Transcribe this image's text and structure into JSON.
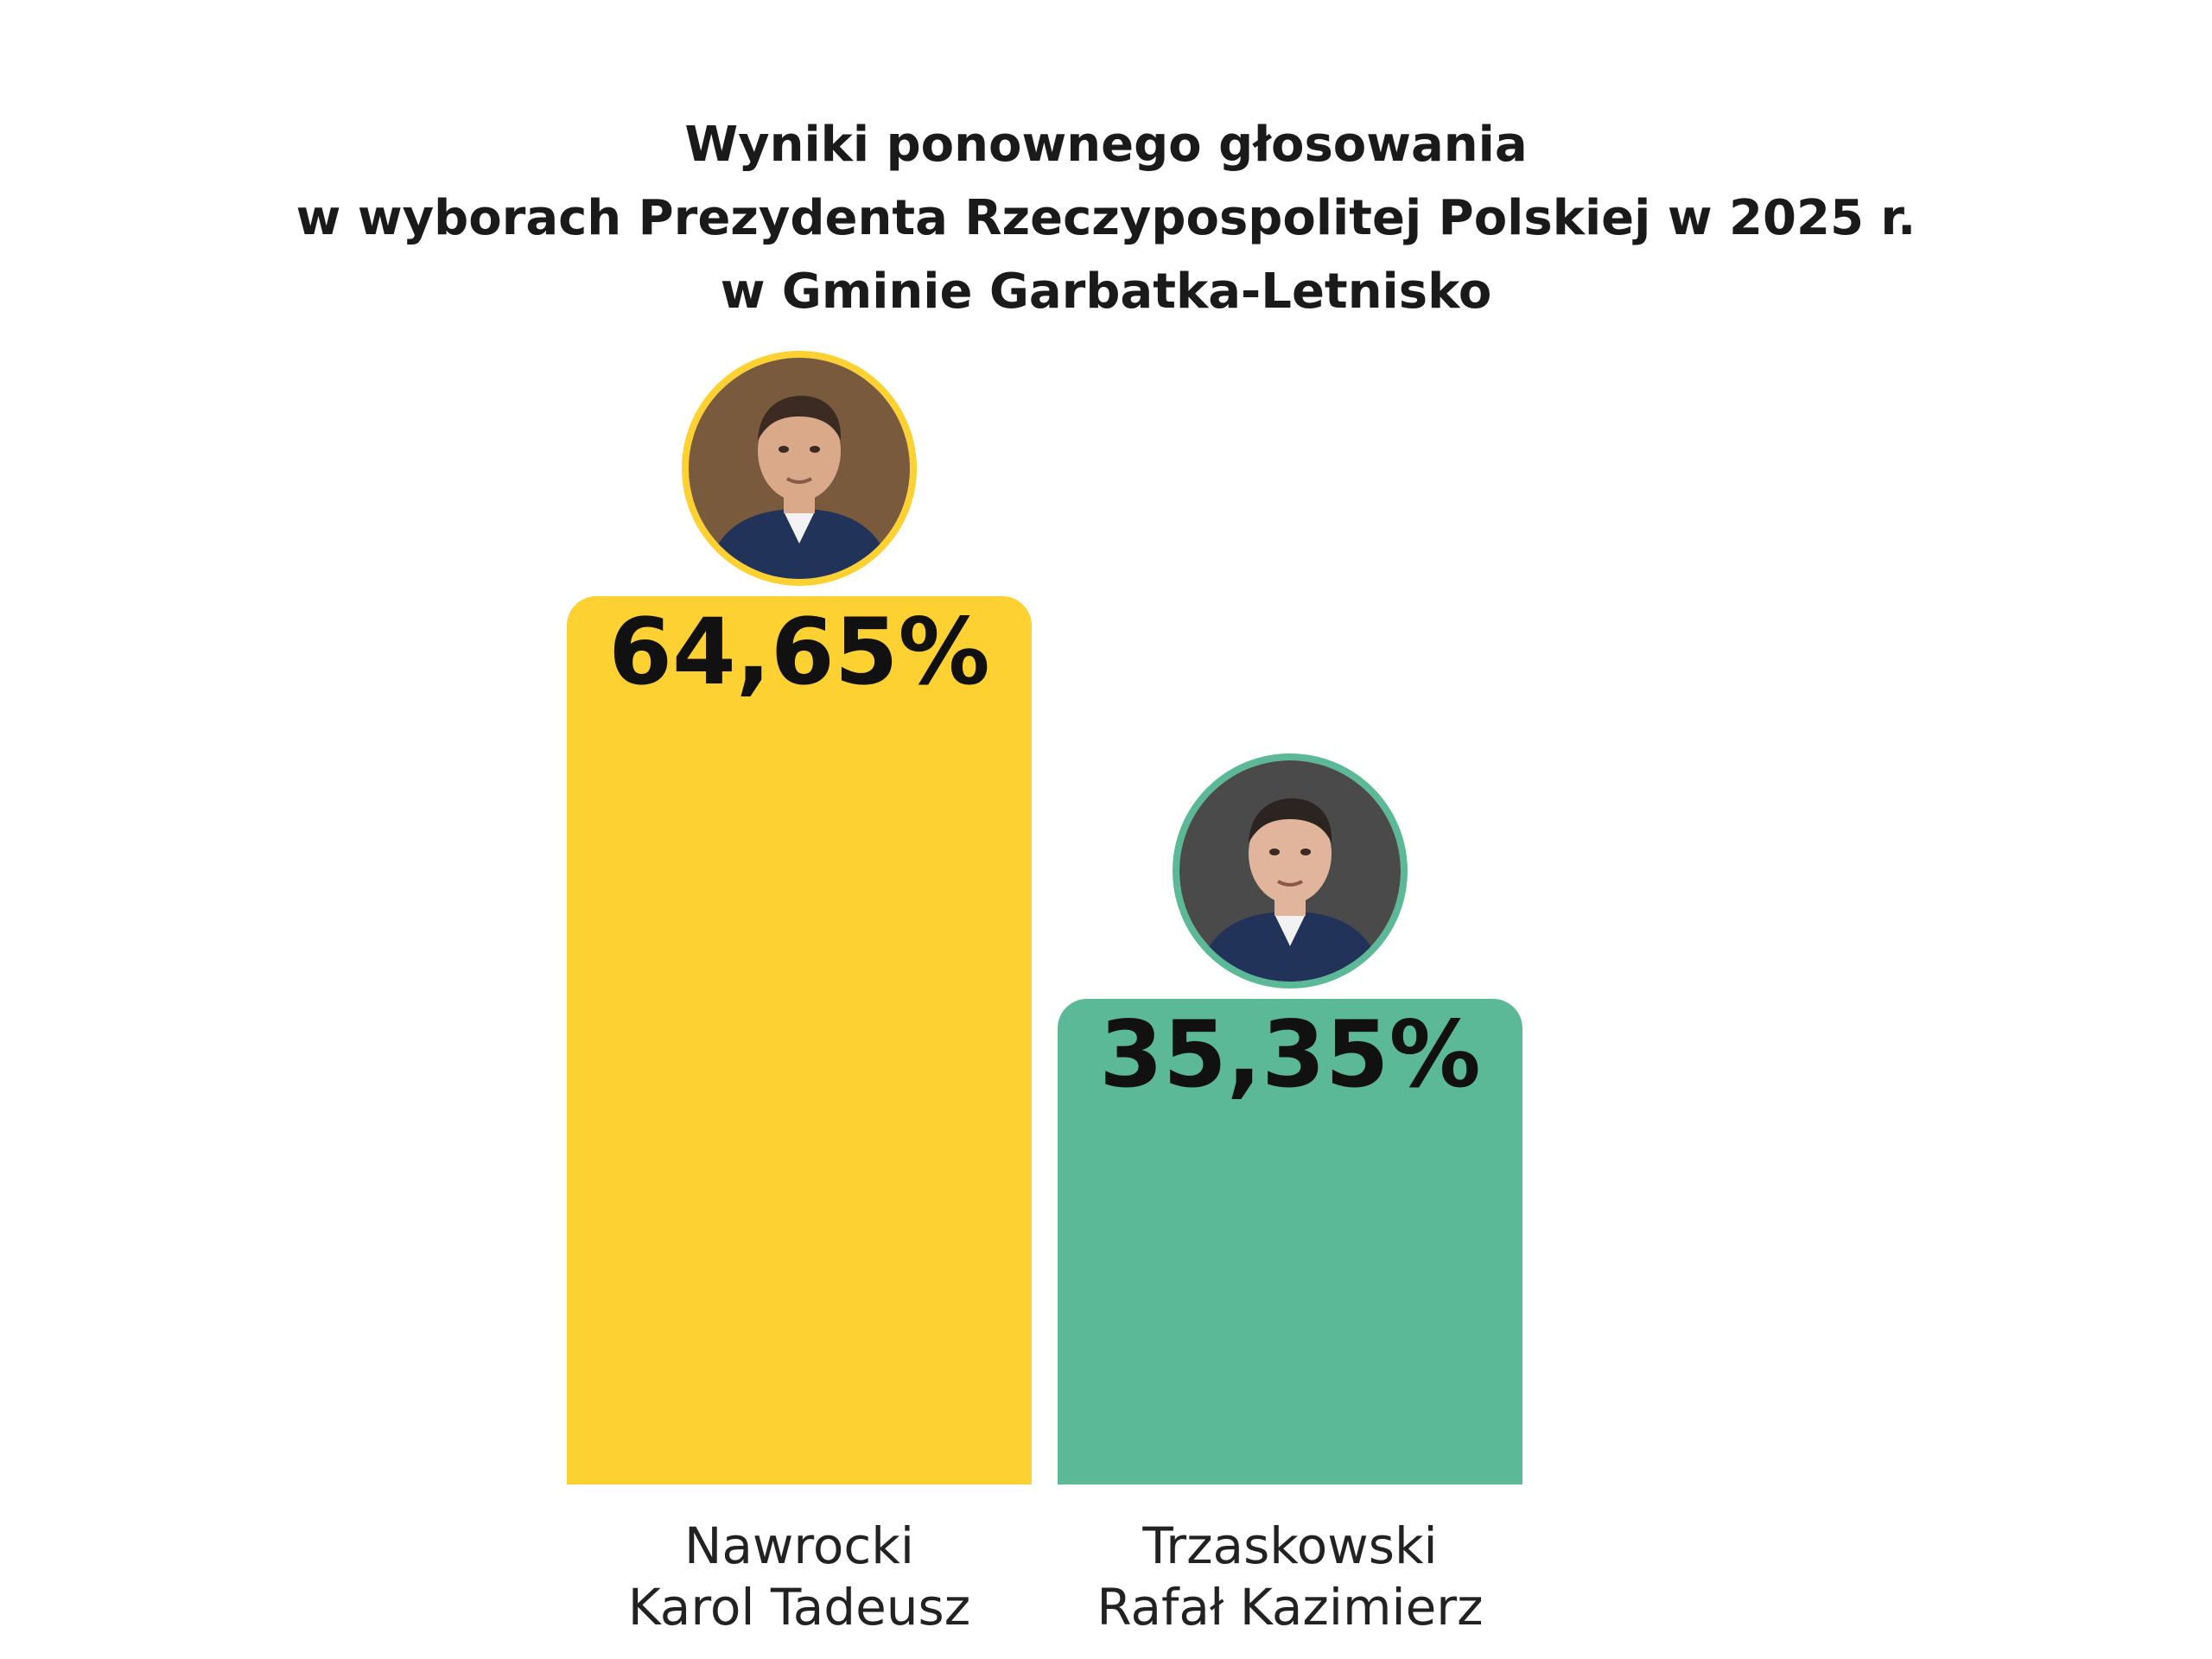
{
  "chart_data": {
    "type": "bar",
    "title_lines": [
      "Wyniki ponownego głosowania",
      "w wyborach Prezydenta Rzeczypospolitej Polskiej w 2025 r.",
      "w Gminie Garbatka-Letnisko"
    ],
    "categories": [
      {
        "line1": "Nawrocki",
        "line2": "Karol Tadeusz"
      },
      {
        "line1": "Trzaskowski",
        "line2": "Rafał Kazimierz"
      }
    ],
    "values": [
      64.65,
      35.35
    ],
    "value_labels": [
      "64,65%",
      "35,35%"
    ],
    "colors": [
      "#FDD131",
      "#5CB998"
    ],
    "avatar_icons": [
      "candidate-portrait-icon",
      "candidate-portrait-icon"
    ],
    "ylim": [
      0,
      64.65
    ],
    "grid": false,
    "legend": "none"
  }
}
